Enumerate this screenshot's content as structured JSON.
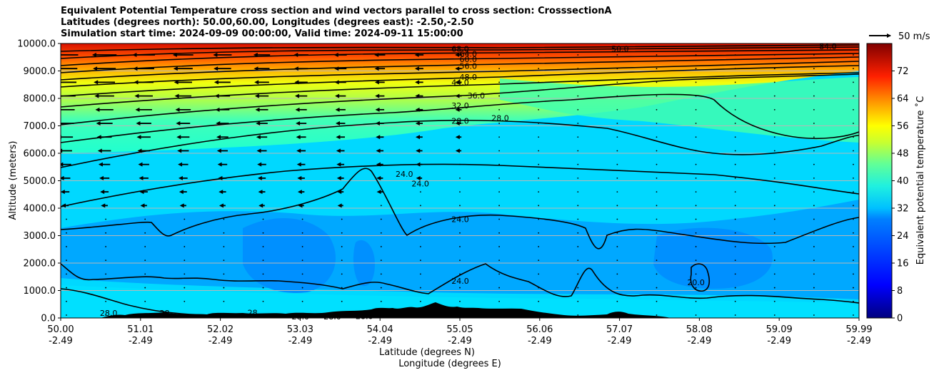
{
  "chart_data": {
    "type": "contour",
    "title_lines": [
      "Equivalent Potential Temperature cross section and wind vectors parallel to cross section: CrosssectionA",
      "Latitudes (degrees north): 50.00,60.00, Longitudes (degrees east): -2.50,-2.50",
      "Simulation start time: 2024-09-09 00:00:00, Valid time: 2024-09-11 15:00:00"
    ],
    "ylabel": "Altitude (meters)",
    "xlabel": "Latitude (degrees N)",
    "xlabel2": "Longitude (degrees E)",
    "ylim": [
      0,
      10000
    ],
    "xlim": [
      50.0,
      59.99
    ],
    "x_ticks": [
      "50.00",
      "51.01",
      "52.02",
      "53.03",
      "54.04",
      "55.05",
      "56.06",
      "57.07",
      "58.08",
      "59.09",
      "59.99"
    ],
    "x_ticks_lon": [
      "-2.49",
      "-2.49",
      "-2.49",
      "-2.49",
      "-2.49",
      "-2.49",
      "-2.49",
      "-2.49",
      "-2.49",
      "-2.49",
      "-2.49"
    ],
    "y_ticks": [
      "0.0",
      "1000.0",
      "2000.0",
      "3000.0",
      "4000.0",
      "5000.0",
      "6000.0",
      "7000.0",
      "8000.0",
      "9000.0",
      "10000.0"
    ],
    "grid": "horizontal",
    "colorbar": {
      "label": "Equivalent potential temperature ˚C",
      "range": [
        0,
        80
      ],
      "ticks": [
        "0",
        "8",
        "16",
        "24",
        "32",
        "40",
        "48",
        "56",
        "64",
        "72"
      ]
    },
    "quiver_key": "50 m/s",
    "contour_labels": [
      {
        "text": "68.0",
        "x": 55.0,
        "y": 9800
      },
      {
        "text": "64.0",
        "x": 55.1,
        "y": 9620
      },
      {
        "text": "60.0",
        "x": 55.1,
        "y": 9430
      },
      {
        "text": "56.0",
        "x": 55.1,
        "y": 9180
      },
      {
        "text": "48.0",
        "x": 55.1,
        "y": 8780
      },
      {
        "text": "44.0",
        "x": 55.0,
        "y": 8580
      },
      {
        "text": "36.0",
        "x": 55.2,
        "y": 8100
      },
      {
        "text": "32.0",
        "x": 55.0,
        "y": 7740
      },
      {
        "text": "28.0",
        "x": 55.0,
        "y": 7180
      },
      {
        "text": "28.0",
        "x": 55.5,
        "y": 7280
      },
      {
        "text": "24.0",
        "x": 54.3,
        "y": 5250
      },
      {
        "text": "24.0",
        "x": 54.5,
        "y": 4900
      },
      {
        "text": "24.0",
        "x": 55.0,
        "y": 3600
      },
      {
        "text": "24.0",
        "x": 55.0,
        "y": 1350
      },
      {
        "text": "20.0",
        "x": 57.95,
        "y": 1300
      },
      {
        "text": "28.0",
        "x": 50.6,
        "y": 180
      },
      {
        "text": "28",
        "x": 51.3,
        "y": 180
      },
      {
        "text": "28",
        "x": 52.4,
        "y": 200
      },
      {
        "text": "28.0",
        "x": 53.0,
        "y": 50
      },
      {
        "text": "28.0",
        "x": 53.4,
        "y": 50
      },
      {
        "text": "28.0",
        "x": 53.8,
        "y": 60
      },
      {
        "text": "28",
        "x": 54.6,
        "y": 200
      },
      {
        "text": "50.0",
        "x": 57.0,
        "y": 9800
      },
      {
        "text": "84.0",
        "x": 59.6,
        "y": 9900
      }
    ]
  }
}
